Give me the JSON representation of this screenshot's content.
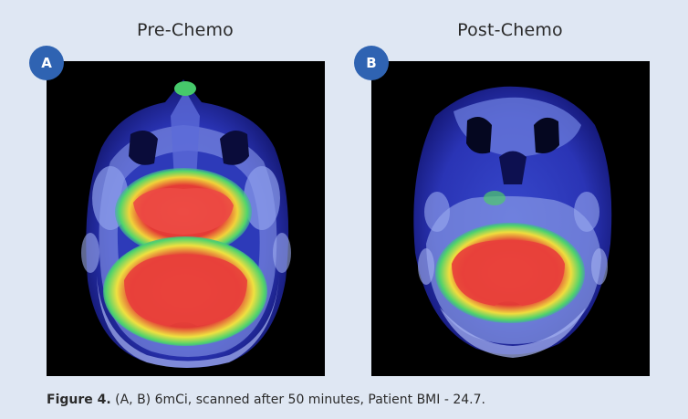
{
  "panels": [
    {
      "badge": "A",
      "title": "Pre-Chemo"
    },
    {
      "badge": "B",
      "title": "Post-Chemo"
    }
  ],
  "caption": {
    "label": "Figure 4.",
    "text": "(A, B) 6mCi, scanned after 50 minutes, Patient BMI - 24.7."
  },
  "colors": {
    "background": "#dfe7f3",
    "badge": "#2f63b2",
    "hot_uptake": "#e8423a",
    "mid_uptake": "#3fd36a",
    "low_uptake": "#2b35b8",
    "tissue": "#8f9ce6"
  }
}
